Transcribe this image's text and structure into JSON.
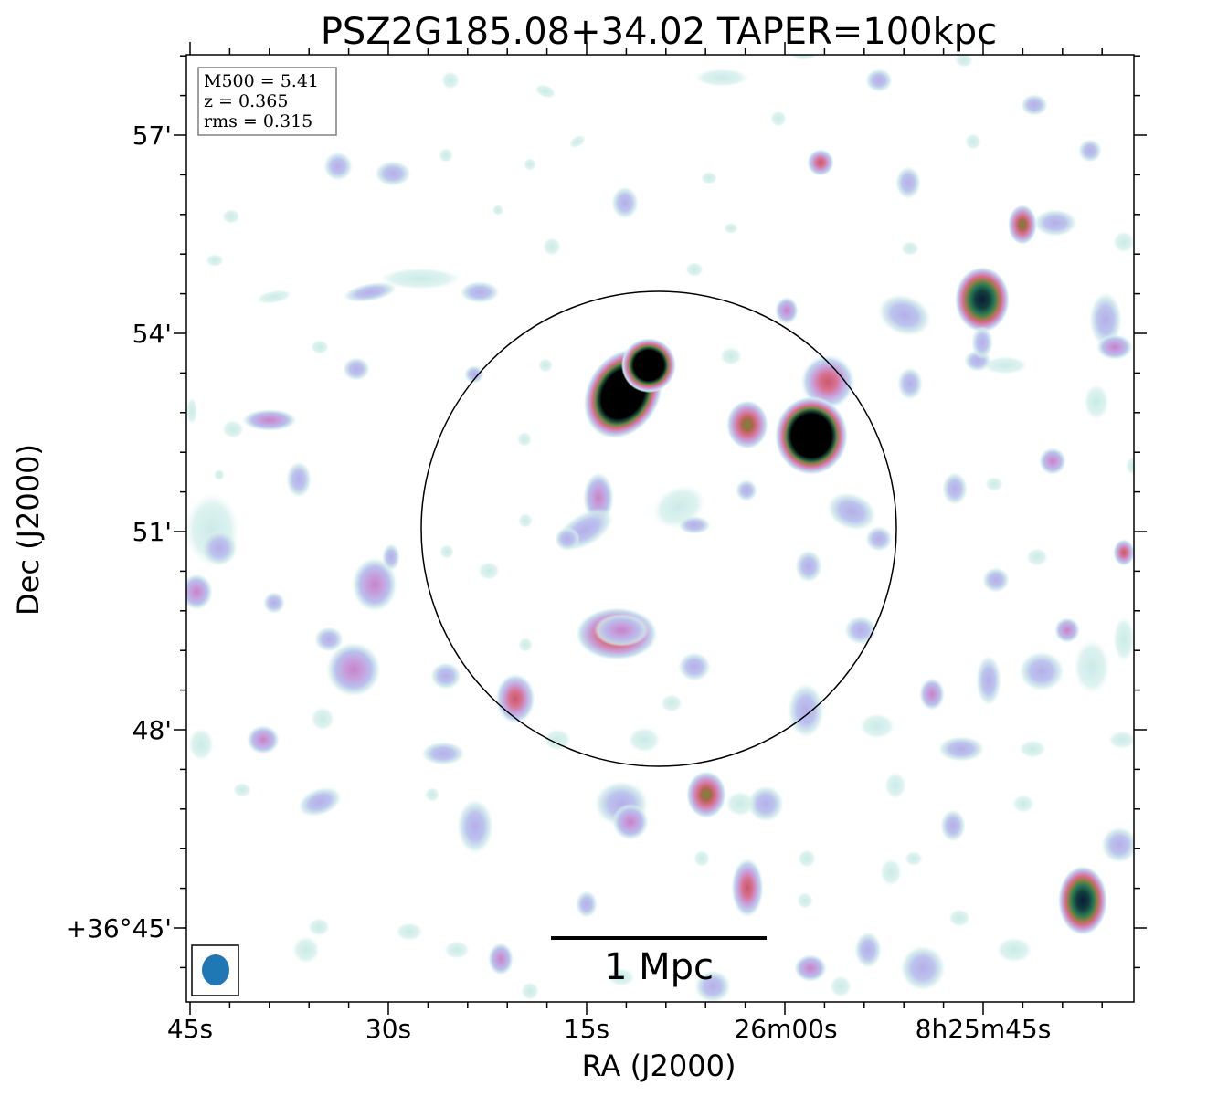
{
  "title": "PSZ2G185.08+34.02 TAPER=100kpc",
  "info_box": {
    "m500": "M500 = 5.41",
    "z": "z = 0.365",
    "rms": "rms = 0.315"
  },
  "x_axis": {
    "label": "RA (J2000)",
    "ticks": [
      "45s",
      "30s",
      "15s",
      "26m00s",
      "8h25m45s"
    ]
  },
  "y_axis": {
    "label": "Dec (J2000)",
    "ticks": [
      "57'",
      "54'",
      "51'",
      "48'",
      "+36°45'"
    ]
  },
  "scale_bar": {
    "label": "1 Mpc"
  },
  "colors": {
    "faint": "#cfeee9",
    "lavender": "#b9b6ee",
    "purple": "#c79ad8",
    "pink": "#d96f8e",
    "olive": "#7a8a3a",
    "teal": "#1f6a5c",
    "black": "#000000",
    "beam": "#1f77b4"
  }
}
